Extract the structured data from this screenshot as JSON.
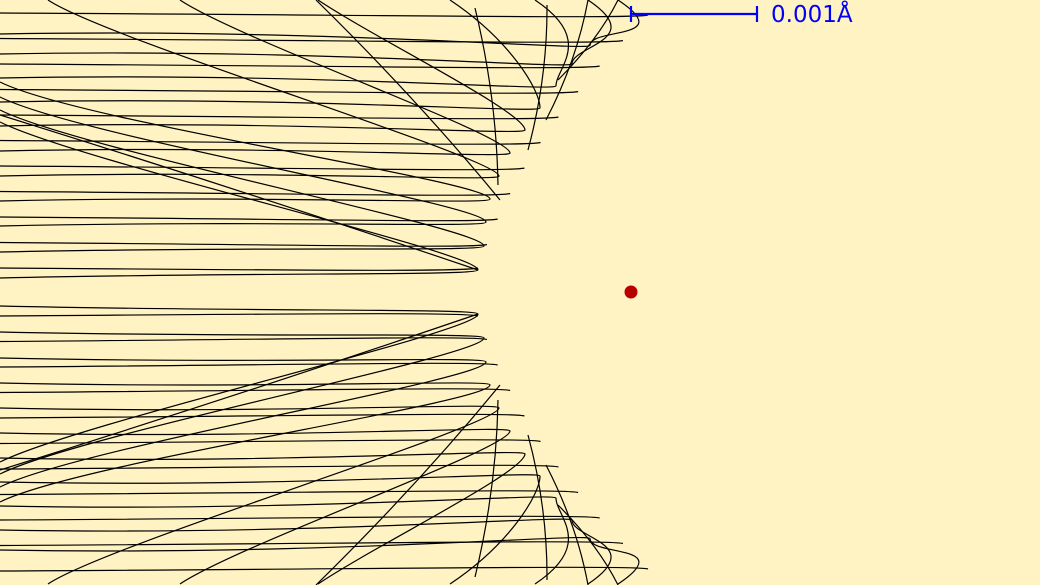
{
  "scale_bar": {
    "label": "0.001Å",
    "color": "#0000ff"
  },
  "background_color": "#fff3c3",
  "nucleus": {
    "color": "#b80000"
  },
  "trajectories": {
    "color": "#000000",
    "description_type": "scattering trajectories from the left, deflected by a central point charge"
  }
}
